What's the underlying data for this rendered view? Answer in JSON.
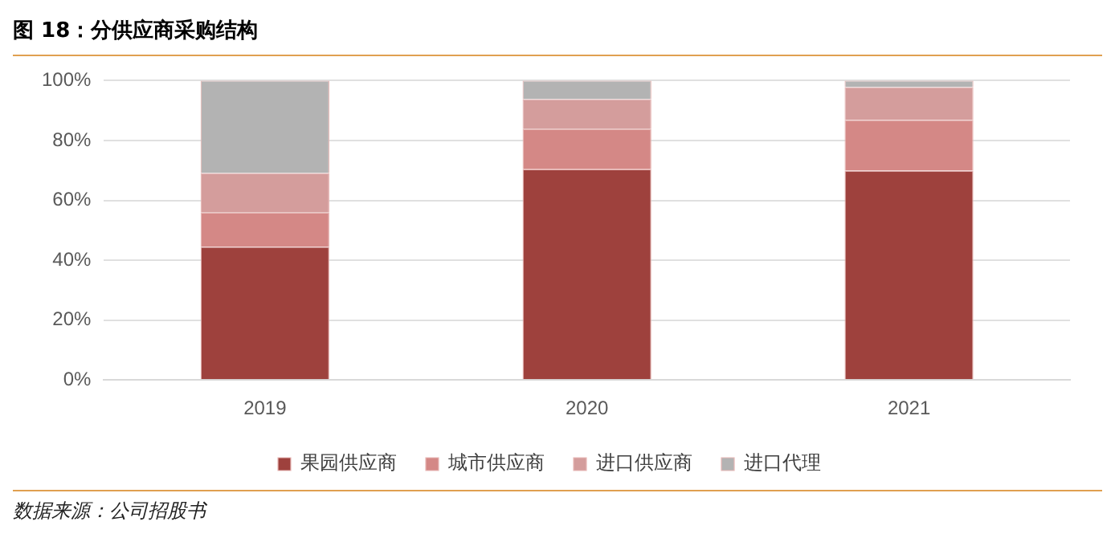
{
  "chart_data": {
    "type": "bar",
    "title": "图 18：分供应商采购结构",
    "categories": [
      "2019",
      "2020",
      "2021"
    ],
    "stacked": true,
    "series": [
      {
        "name": "果园供应商",
        "color": "#9e413d",
        "values": [
          44.5,
          70.4,
          69.9
        ]
      },
      {
        "name": "城市供应商",
        "color": "#d48886",
        "values": [
          11.4,
          13.4,
          17
        ]
      },
      {
        "name": "进口供应商",
        "color": "#d49d9c",
        "values": [
          13.2,
          10,
          10.9
        ]
      },
      {
        "name": "进口代理",
        "color": "#b3b3b3",
        "values": [
          30.9,
          6.2,
          2.2
        ]
      }
    ],
    "ylim": [
      0,
      100
    ],
    "yticks": [
      {
        "value": 0,
        "label": "0%"
      },
      {
        "value": 20,
        "label": "20%"
      },
      {
        "value": 40,
        "label": "40%"
      },
      {
        "value": 60,
        "label": "60%"
      },
      {
        "value": 80,
        "label": "80%"
      },
      {
        "value": 100,
        "label": "100%"
      }
    ],
    "grid": "y",
    "legend": "bottom",
    "annotations": [
      "数据来源：公司招股书"
    ]
  }
}
